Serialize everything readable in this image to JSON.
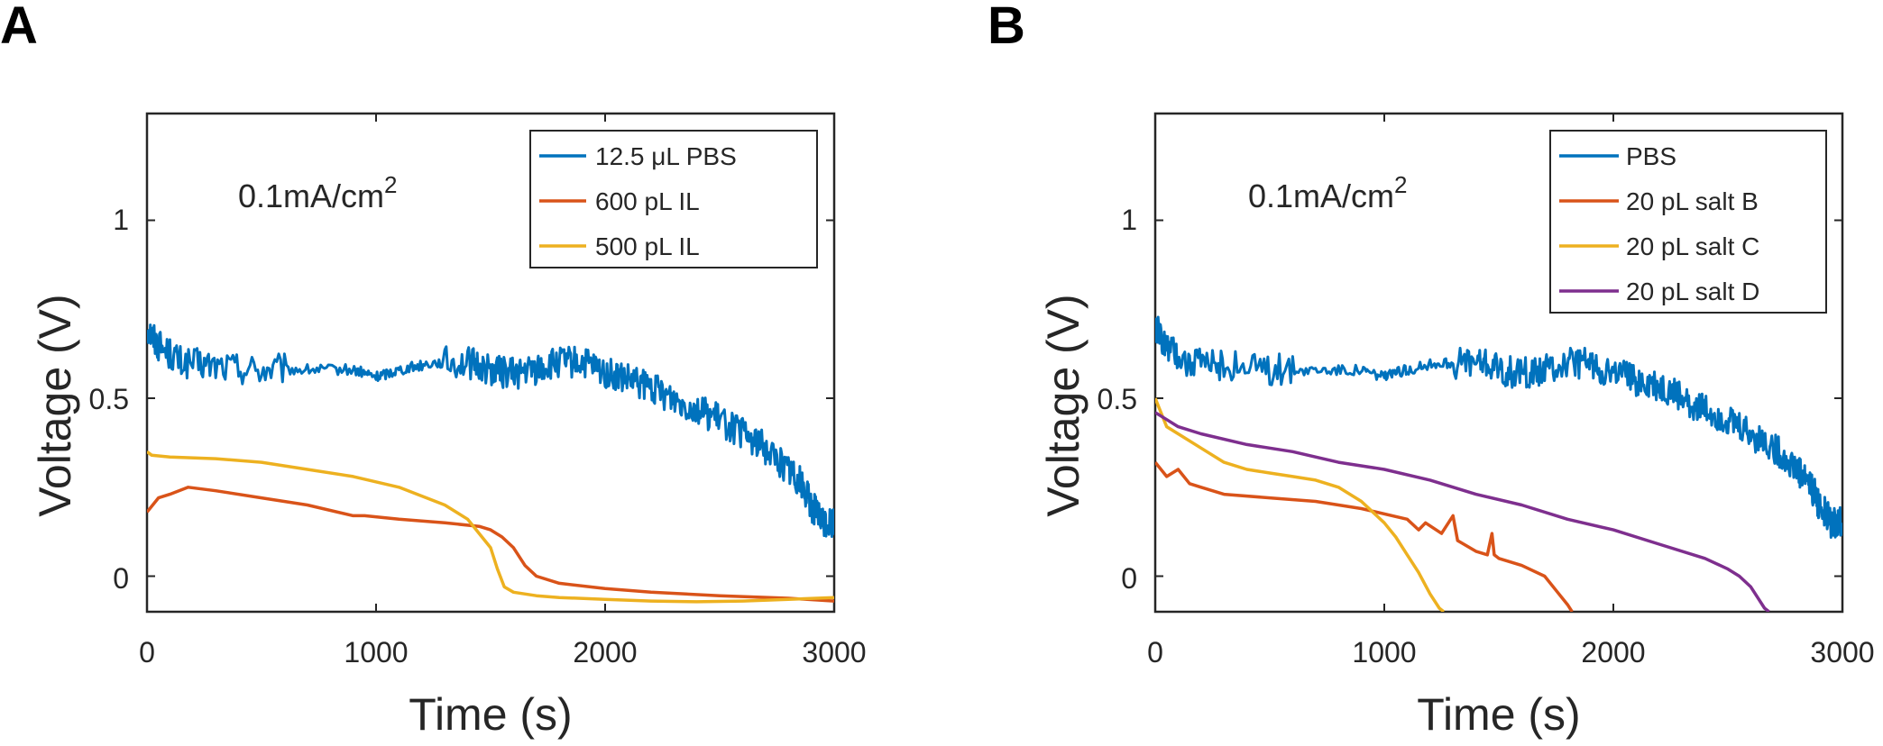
{
  "chart_data": [
    {
      "type": "line",
      "panel_label": "A",
      "xlabel": "Time (s)",
      "ylabel": "Voltage (V)",
      "xlim": [
        0,
        3000
      ],
      "ylim": [
        -0.1,
        1.3
      ],
      "xticks": [
        0,
        1000,
        2000,
        3000
      ],
      "xtick_labels": [
        "0",
        "1000",
        "2000",
        "3000"
      ],
      "yticks": [
        0,
        0.5,
        1
      ],
      "ytick_labels": [
        "0",
        "0.5",
        "1"
      ],
      "annotation": {
        "text": "0.1mA/cm",
        "sup": "2"
      },
      "legend_position": "top-right",
      "grid": false,
      "series": [
        {
          "name": "12.5 μL PBS",
          "color": "#0072BD",
          "noisy": true,
          "x": [
            0,
            50,
            150,
            300,
            500,
            700,
            900,
            1000,
            1100,
            1250,
            1400,
            1500,
            1600,
            1700,
            1800,
            1900,
            2000,
            2100,
            2200,
            2300,
            2400,
            2500,
            2600,
            2700,
            2800,
            2850,
            2900,
            2950,
            3000
          ],
          "y": [
            0.7,
            0.65,
            0.6,
            0.59,
            0.58,
            0.58,
            0.58,
            0.56,
            0.58,
            0.6,
            0.6,
            0.58,
            0.57,
            0.58,
            0.6,
            0.6,
            0.57,
            0.55,
            0.53,
            0.5,
            0.47,
            0.44,
            0.4,
            0.36,
            0.3,
            0.27,
            0.2,
            0.15,
            0.15
          ]
        },
        {
          "name": "600 pL IL",
          "color": "#D95319",
          "noisy": false,
          "x": [
            0,
            50,
            100,
            180,
            300,
            500,
            700,
            900,
            950,
            1100,
            1300,
            1450,
            1500,
            1550,
            1600,
            1650,
            1700,
            1800,
            2000,
            2200,
            2500,
            2800,
            3000
          ],
          "y": [
            0.18,
            0.22,
            0.23,
            0.25,
            0.24,
            0.22,
            0.2,
            0.17,
            0.17,
            0.16,
            0.15,
            0.14,
            0.13,
            0.11,
            0.08,
            0.03,
            0.0,
            -0.02,
            -0.035,
            -0.045,
            -0.055,
            -0.062,
            -0.07
          ]
        },
        {
          "name": "500 pL IL",
          "color": "#EDB120",
          "noisy": false,
          "x": [
            0,
            20,
            100,
            300,
            500,
            700,
            900,
            1100,
            1300,
            1400,
            1450,
            1500,
            1530,
            1560,
            1600,
            1700,
            1800,
            2000,
            2200,
            2400,
            2600,
            2800,
            3000
          ],
          "y": [
            0.35,
            0.34,
            0.335,
            0.33,
            0.32,
            0.3,
            0.28,
            0.25,
            0.2,
            0.16,
            0.12,
            0.08,
            0.02,
            -0.03,
            -0.045,
            -0.055,
            -0.06,
            -0.065,
            -0.07,
            -0.072,
            -0.07,
            -0.065,
            -0.06
          ]
        }
      ]
    },
    {
      "type": "line",
      "panel_label": "B",
      "xlabel": "Time (s)",
      "ylabel": "Voltage (V)",
      "xlim": [
        0,
        3000
      ],
      "ylim": [
        -0.1,
        1.3
      ],
      "xticks": [
        0,
        1000,
        2000,
        3000
      ],
      "xtick_labels": [
        "0",
        "1000",
        "2000",
        "3000"
      ],
      "yticks": [
        0,
        0.5,
        1
      ],
      "ytick_labels": [
        "0",
        "0.5",
        "1"
      ],
      "annotation": {
        "text": "0.1mA/cm",
        "sup": "2"
      },
      "legend_position": "top-right",
      "grid": false,
      "series": [
        {
          "name": "PBS",
          "color": "#0072BD",
          "noisy": true,
          "x": [
            0,
            50,
            150,
            300,
            500,
            700,
            900,
            1000,
            1100,
            1250,
            1400,
            1500,
            1600,
            1700,
            1800,
            1900,
            2000,
            2100,
            2200,
            2300,
            2400,
            2500,
            2600,
            2700,
            2800,
            2850,
            2900,
            2950,
            3000
          ],
          "y": [
            0.7,
            0.65,
            0.6,
            0.59,
            0.58,
            0.58,
            0.58,
            0.56,
            0.58,
            0.6,
            0.6,
            0.58,
            0.57,
            0.58,
            0.6,
            0.6,
            0.57,
            0.55,
            0.53,
            0.5,
            0.47,
            0.44,
            0.4,
            0.36,
            0.3,
            0.27,
            0.2,
            0.15,
            0.15
          ]
        },
        {
          "name": "20 pL salt B",
          "color": "#D95319",
          "noisy": false,
          "x": [
            0,
            50,
            100,
            150,
            200,
            300,
            500,
            700,
            900,
            1100,
            1150,
            1180,
            1250,
            1300,
            1320,
            1400,
            1450,
            1470,
            1480,
            1500,
            1600,
            1700,
            1750,
            1800,
            1820
          ],
          "y": [
            0.32,
            0.28,
            0.3,
            0.26,
            0.25,
            0.23,
            0.22,
            0.21,
            0.19,
            0.16,
            0.13,
            0.15,
            0.12,
            0.17,
            0.1,
            0.07,
            0.06,
            0.12,
            0.06,
            0.05,
            0.03,
            0.0,
            -0.04,
            -0.08,
            -0.1
          ]
        },
        {
          "name": "20 pL salt C",
          "color": "#EDB120",
          "noisy": false,
          "x": [
            0,
            50,
            100,
            200,
            300,
            400,
            500,
            600,
            700,
            800,
            900,
            1000,
            1050,
            1100,
            1150,
            1200,
            1240,
            1260
          ],
          "y": [
            0.5,
            0.42,
            0.4,
            0.36,
            0.32,
            0.3,
            0.29,
            0.28,
            0.27,
            0.25,
            0.21,
            0.15,
            0.11,
            0.06,
            0.01,
            -0.05,
            -0.09,
            -0.1
          ]
        },
        {
          "name": "20 pL salt D",
          "color": "#7E2F8E",
          "noisy": false,
          "x": [
            0,
            50,
            100,
            200,
            400,
            600,
            800,
            1000,
            1200,
            1400,
            1600,
            1800,
            2000,
            2200,
            2400,
            2500,
            2550,
            2600,
            2630,
            2660,
            2680
          ],
          "y": [
            0.46,
            0.44,
            0.42,
            0.4,
            0.37,
            0.35,
            0.32,
            0.3,
            0.27,
            0.23,
            0.2,
            0.16,
            0.13,
            0.09,
            0.05,
            0.02,
            0.0,
            -0.03,
            -0.06,
            -0.09,
            -0.1
          ]
        }
      ]
    }
  ]
}
